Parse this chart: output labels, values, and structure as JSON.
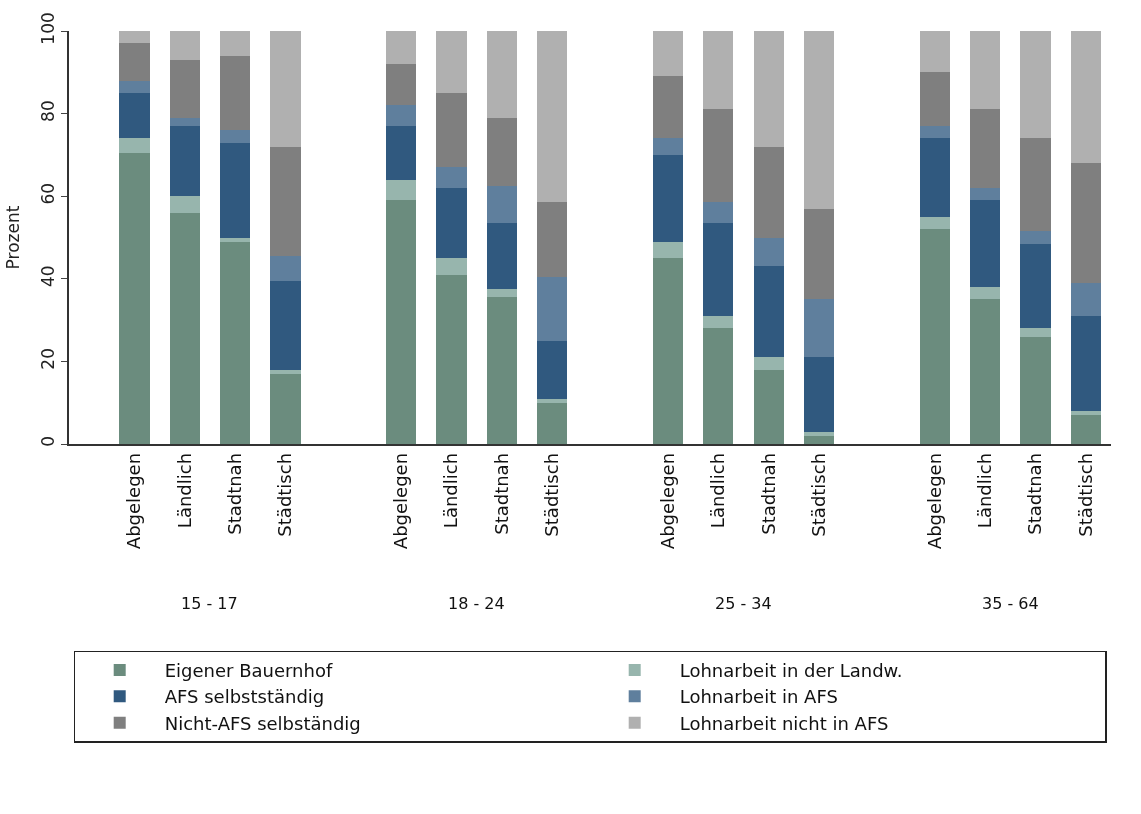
{
  "chart_data": {
    "type": "bar",
    "stacked": true,
    "ylabel": "Prozent",
    "ylim": [
      0,
      100
    ],
    "yticks": [
      0,
      20,
      40,
      60,
      80,
      100
    ],
    "legend": "bottom",
    "categories": [
      "Abgelegen",
      "Ländlich",
      "Stadtnah",
      "Städtisch",
      "Abgelegen",
      "Ländlich",
      "Stadtnah",
      "Städtisch",
      "Abgelegen",
      "Ländlich",
      "Stadtnah",
      "Städtisch",
      "Abgelegen",
      "Ländlich",
      "Stadtnah",
      "Städtisch"
    ],
    "annotations": [
      "15 - 17",
      "18 - 24",
      "25 - 34",
      "35 - 64"
    ],
    "series": [
      {
        "name": "Eigener Bauernhof",
        "color": "#6b8c7e",
        "values": [
          70.5,
          56,
          49,
          17,
          59,
          41,
          35.5,
          10,
          45,
          28,
          18,
          2,
          52,
          35,
          26,
          7
        ]
      },
      {
        "name": "Lohnarbeit in der Landw.",
        "color": "#97b5ad",
        "values": [
          3.5,
          4,
          1,
          1,
          5,
          4,
          2,
          1,
          4,
          3,
          3,
          1,
          3,
          3,
          2,
          1
        ]
      },
      {
        "name": "AFS selbstständig",
        "color": "#30597f",
        "values": [
          11,
          17,
          23,
          21.5,
          13,
          17,
          16,
          14,
          21,
          22.5,
          22,
          18,
          19,
          21,
          20.5,
          23
        ]
      },
      {
        "name": "Lohnarbeit in AFS",
        "color": "#5f7f9d",
        "values": [
          3,
          2,
          3,
          6,
          5,
          5,
          9,
          15.5,
          4,
          5,
          7,
          14,
          3,
          3,
          3,
          8
        ]
      },
      {
        "name": "Nicht-AFS selbständig",
        "color": "#7f7f7f",
        "values": [
          9,
          14,
          18,
          26.5,
          10,
          18,
          16.5,
          18,
          15,
          22.5,
          22,
          22,
          13,
          19,
          22.5,
          29
        ]
      },
      {
        "name": "Lohnarbeit nicht in AFS",
        "color": "#b0b0b0",
        "values": [
          3,
          7,
          6,
          28,
          8,
          15,
          21,
          41.5,
          11,
          19,
          28,
          43,
          10,
          19,
          26,
          32
        ]
      }
    ]
  }
}
